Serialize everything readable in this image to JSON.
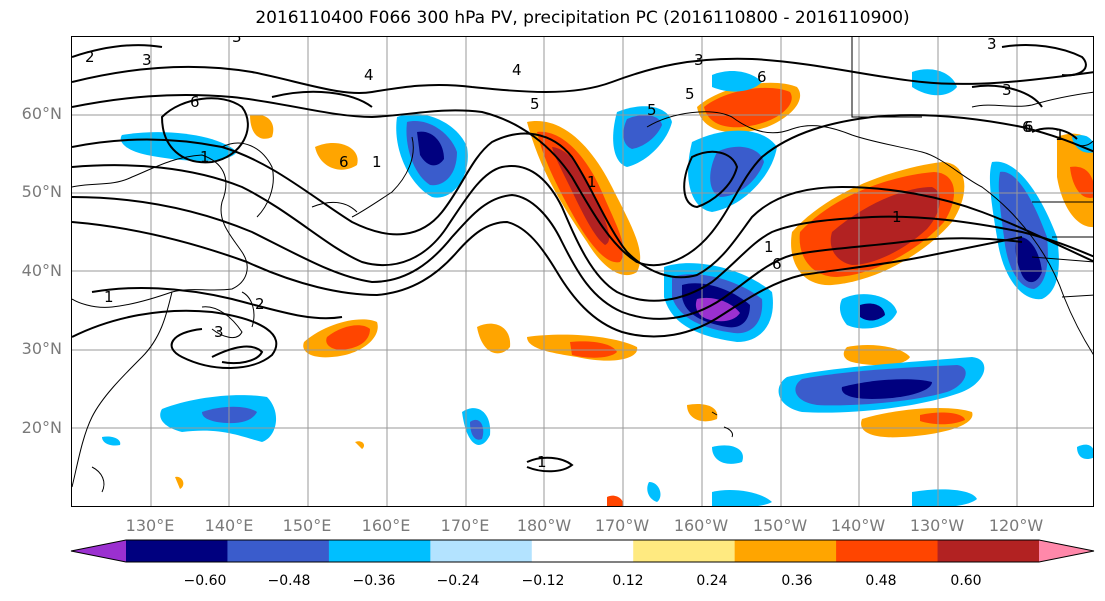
{
  "title": "2016110400 F066 300 hPa PV, precipitation PC (2016110800 - 2016110900)",
  "lat_labels": [
    "60°N",
    "50°N",
    "40°N",
    "30°N",
    "20°N"
  ],
  "lon_labels": [
    "130°E",
    "140°E",
    "150°E",
    "160°E",
    "170°E",
    "180°W",
    "170°W",
    "160°W",
    "150°W",
    "140°W",
    "130°W",
    "120°W"
  ],
  "colorbar": {
    "ticks": [
      "−0.60",
      "−0.48",
      "−0.36",
      "−0.24",
      "−0.12",
      "0.12",
      "0.24",
      "0.36",
      "0.48",
      "0.60"
    ],
    "colors": [
      "#9b30d0",
      "#00007f",
      "#3a5ccc",
      "#00bfff",
      "#b3e3ff",
      "#ffffff",
      "#ffea80",
      "#ffa500",
      "#ff4500",
      "#b22222",
      "#ff88aa"
    ]
  },
  "contour_labels": [
    "2",
    "3",
    "3",
    "4",
    "4",
    "5",
    "5",
    "6",
    "6",
    "6",
    "6",
    "3",
    "3",
    "5",
    "1",
    "1",
    "1",
    "1",
    "1",
    "2",
    "3",
    "6",
    "1",
    "1",
    "3",
    "6",
    "1"
  ]
}
